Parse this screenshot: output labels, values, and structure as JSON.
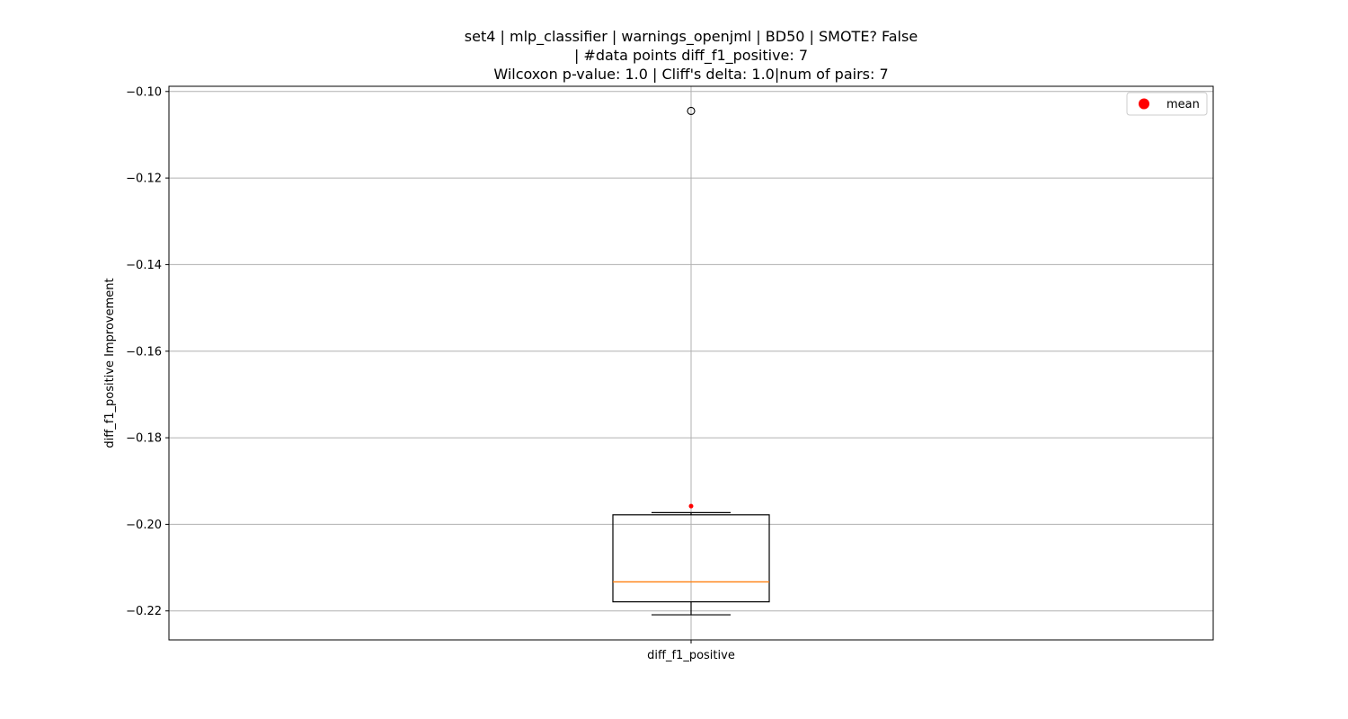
{
  "chart_data": {
    "type": "box",
    "title_lines": [
      "set4 | mlp_classifier | warnings_openjml | BD50 | SMOTE? False",
      "| #data points diff_f1_positive: 7",
      "Wilcoxon p-value: 1.0 | Cliff's delta: 1.0|num of pairs: 7"
    ],
    "xlabel": "",
    "ylabel": "diff_f1_positive Improvement",
    "categories": [
      "diff_f1_positive"
    ],
    "ylim": [
      -0.2267,
      -0.0988
    ],
    "yticks": [
      -0.22,
      -0.2,
      -0.18,
      -0.16,
      -0.14,
      -0.12,
      -0.1
    ],
    "ytick_labels": [
      "−0.22",
      "−0.20",
      "−0.18",
      "−0.16",
      "−0.14",
      "−0.12",
      "−0.10"
    ],
    "grid": true,
    "legend": {
      "position": "top-right",
      "entries": [
        {
          "label": "mean",
          "color": "#ff0000",
          "marker": "circle"
        }
      ]
    },
    "box": {
      "whisker_low": -0.2209,
      "q1": -0.2179,
      "median": -0.2133,
      "q3": -0.1978,
      "whisker_high": -0.1973,
      "mean": -0.1958,
      "outliers": [
        -0.1045
      ]
    },
    "colors": {
      "box": "#000000",
      "median": "#ff7f0e",
      "mean": "#ff0000",
      "grid": "#b0b0b0"
    }
  }
}
